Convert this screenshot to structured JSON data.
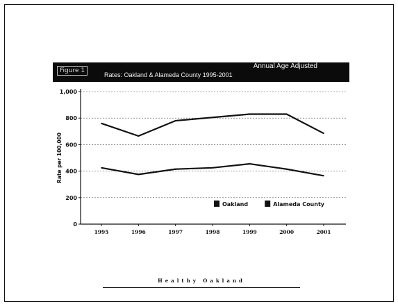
{
  "header": {
    "label": "Figure 1",
    "title_line1": "Annual Age Adjusted",
    "title_line2": "Rates: Oakland & Alameda County 1995-2001"
  },
  "footer": {
    "text": "Healthy Oakland"
  },
  "chart_data": {
    "type": "line",
    "title": "Annual Age Adjusted Rates: Oakland & Alameda County 1995-2001",
    "xlabel": "",
    "ylabel": "Rate per 100,000",
    "categories": [
      "1995",
      "1996",
      "1997",
      "1998",
      "1999",
      "2000",
      "2001"
    ],
    "ylim": [
      0,
      1000
    ],
    "yticks": [
      "0",
      "200",
      "400",
      "600",
      "800",
      "1,000"
    ],
    "grid": true,
    "legend_position": "bottom-right",
    "series": [
      {
        "name": "Oakland",
        "values": [
          760,
          665,
          780,
          805,
          830,
          830,
          685
        ]
      },
      {
        "name": "Alameda County",
        "values": [
          425,
          375,
          415,
          425,
          455,
          415,
          365
        ]
      }
    ]
  }
}
